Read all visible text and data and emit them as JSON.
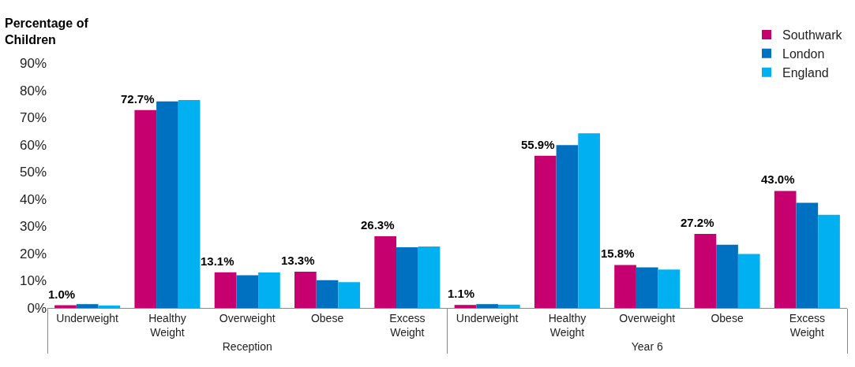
{
  "chart_data": {
    "type": "bar",
    "ylabel": "Percentage of Children",
    "categories": [
      "Underweight",
      "Healthy Weight",
      "Overweight",
      "Obese",
      "Excess Weight",
      "Underweight",
      "Healthy Weight",
      "Overweight",
      "Obese",
      "Excess Weight"
    ],
    "annotations": [
      "Reception",
      "Year 6"
    ],
    "series": [
      {
        "name": "Southwark",
        "color": "#c6006f",
        "values": [
          1.0,
          72.7,
          13.1,
          13.3,
          26.3,
          1.1,
          55.9,
          15.8,
          27.2,
          43.0
        ],
        "value_labels": [
          "1.0%",
          "72.7%",
          "13.1%",
          "13.3%",
          "26.3%",
          "1.1%",
          "55.9%",
          "15.8%",
          "27.2%",
          "43.0%"
        ]
      },
      {
        "name": "London",
        "color": "#0070c0",
        "values": [
          1.4,
          75.9,
          12.0,
          10.2,
          22.3,
          1.4,
          59.8,
          14.9,
          23.2,
          38.6
        ]
      },
      {
        "name": "England",
        "color": "#00b0f0",
        "values": [
          0.9,
          76.4,
          13.0,
          9.5,
          22.6,
          1.2,
          64.2,
          14.1,
          19.8,
          34.2
        ]
      }
    ],
    "ylim": [
      0,
      90
    ],
    "yticks": [
      {
        "value": 0,
        "label": "0%"
      },
      {
        "value": 10,
        "label": "10%"
      },
      {
        "value": 20,
        "label": "20%"
      },
      {
        "value": 30,
        "label": "30%"
      },
      {
        "value": 40,
        "label": "40%"
      },
      {
        "value": 50,
        "label": "50%"
      },
      {
        "value": 60,
        "label": "60%"
      },
      {
        "value": 70,
        "label": "70%"
      },
      {
        "value": 80,
        "label": "80%"
      },
      {
        "value": 90,
        "label": "90%"
      }
    ],
    "legend": "top right"
  }
}
